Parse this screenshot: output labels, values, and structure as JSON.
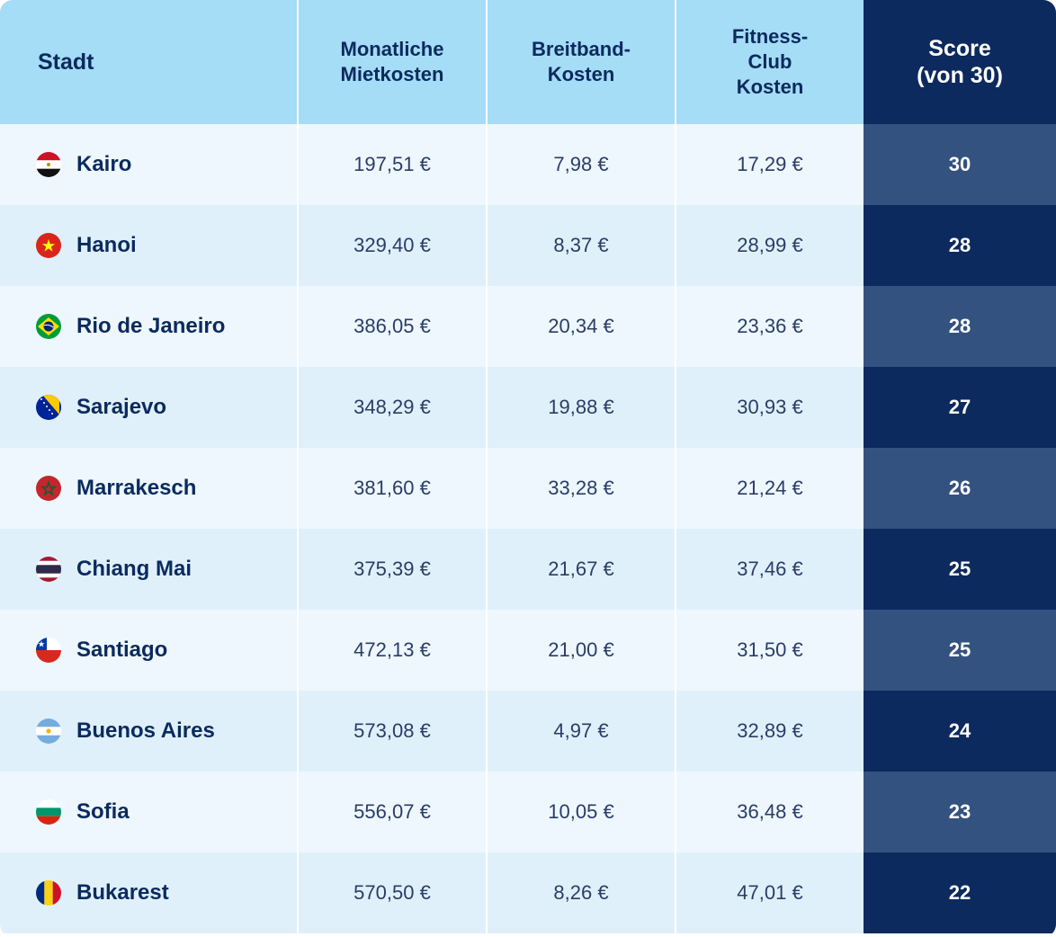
{
  "chart_data": {
    "type": "table",
    "columns": [
      "Stadt",
      "Monatliche\nMietkosten",
      "Breitband-\nKosten",
      "Fitness-\nClub\nKosten",
      "Score\n(von 30)"
    ],
    "rows": [
      {
        "city": "Kairo",
        "rent": "197,51 €",
        "broadband": "7,98 €",
        "gym": "17,29 €",
        "score": "30",
        "flag": "egypt-flag-icon"
      },
      {
        "city": "Hanoi",
        "rent": "329,40 €",
        "broadband": "8,37 €",
        "gym": "28,99 €",
        "score": "28",
        "flag": "vietnam-flag-icon"
      },
      {
        "city": "Rio de Janeiro",
        "rent": "386,05 €",
        "broadband": "20,34 €",
        "gym": "23,36 €",
        "score": "28",
        "flag": "brazil-flag-icon"
      },
      {
        "city": "Sarajevo",
        "rent": "348,29 €",
        "broadband": "19,88 €",
        "gym": "30,93 €",
        "score": "27",
        "flag": "bosnia-flag-icon"
      },
      {
        "city": "Marrakesch",
        "rent": "381,60 €",
        "broadband": "33,28 €",
        "gym": "21,24 €",
        "score": "26",
        "flag": "morocco-flag-icon"
      },
      {
        "city": "Chiang Mai",
        "rent": "375,39 €",
        "broadband": "21,67 €",
        "gym": "37,46 €",
        "score": "25",
        "flag": "thailand-flag-icon"
      },
      {
        "city": "Santiago",
        "rent": "472,13 €",
        "broadband": "21,00 €",
        "gym": "31,50 €",
        "score": "25",
        "flag": "chile-flag-icon"
      },
      {
        "city": "Buenos Aires",
        "rent": "573,08 €",
        "broadband": "4,97 €",
        "gym": "32,89 €",
        "score": "24",
        "flag": "argentina-flag-icon"
      },
      {
        "city": "Sofia",
        "rent": "556,07 €",
        "broadband": "10,05 €",
        "gym": "36,48 €",
        "score": "23",
        "flag": "bulgaria-flag-icon"
      },
      {
        "city": "Bukarest",
        "rent": "570,50 €",
        "broadband": "8,26 €",
        "gym": "47,01 €",
        "score": "22",
        "flag": "romania-flag-icon"
      }
    ]
  },
  "colors": {
    "header_bg": "#a5dcf6",
    "header_text": "#0b2a5e",
    "score_header_bg": "#0c2a5e",
    "score_light": "#34527f",
    "row_odd": "#eef7fd",
    "row_even": "#dff0fb"
  }
}
